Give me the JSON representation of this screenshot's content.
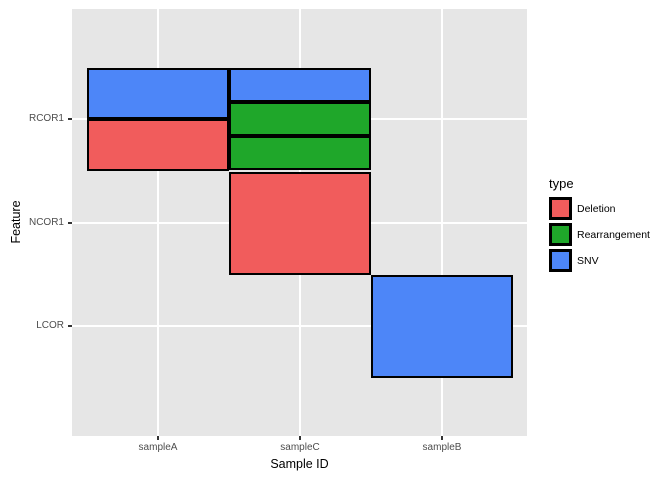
{
  "chart_data": {
    "type": "heatmap",
    "subtype": "categorical-tile-oncoplot",
    "title": "",
    "xlabel": "Sample ID",
    "ylabel": "Feature",
    "x_categories": [
      "sampleA",
      "sampleC",
      "sampleB"
    ],
    "y_categories_top_to_bottom": [
      "RCOR1",
      "NCOR1",
      "LCOR"
    ],
    "legend": {
      "title": "type",
      "position": "right",
      "entries": [
        {
          "label": "Deletion",
          "color": "#F15C5C"
        },
        {
          "label": "Rearrangement",
          "color": "#1FA72A"
        },
        {
          "label": "SNV",
          "color": "#4D86F8"
        }
      ]
    },
    "cells": [
      {
        "sample": "sampleA",
        "feature": "RCOR1",
        "types": [
          "SNV",
          "Deletion"
        ]
      },
      {
        "sample": "sampleC",
        "feature": "RCOR1",
        "types": [
          "SNV",
          "Rearrangement",
          "Rearrangement"
        ]
      },
      {
        "sample": "sampleC",
        "feature": "NCOR1",
        "types": [
          "Deletion"
        ]
      },
      {
        "sample": "sampleB",
        "feature": "LCOR",
        "types": [
          "SNV"
        ]
      }
    ],
    "grid": true,
    "style": {
      "panel_bg": "#E6E6E6",
      "grid_color": "#FFFFFF",
      "tile_border_color": "#000000",
      "tick_label_color": "#4D4D4D",
      "axis_title_color": "#000000",
      "tick_mark_color": "#333333",
      "background": "#FFFFFF"
    }
  }
}
